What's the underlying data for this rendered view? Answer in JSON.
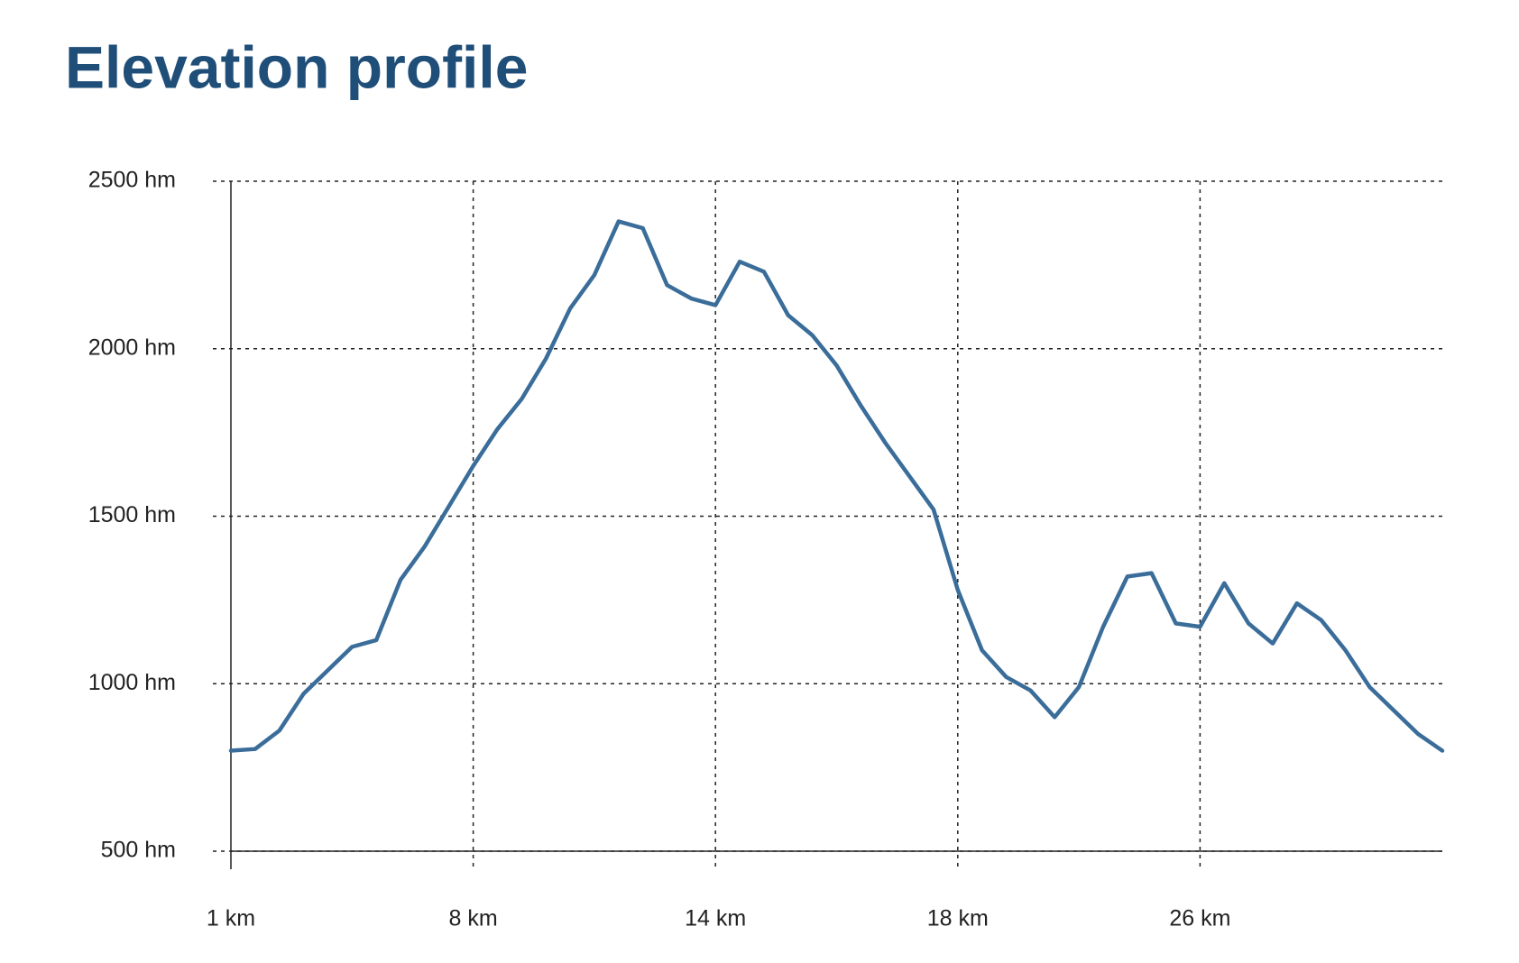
{
  "chart_data": {
    "type": "line",
    "title": "Elevation profile",
    "categories": [
      "1 km",
      null,
      null,
      null,
      null,
      null,
      null,
      null,
      null,
      null,
      "8 km",
      null,
      null,
      null,
      null,
      null,
      null,
      null,
      null,
      null,
      "14 km",
      null,
      null,
      null,
      null,
      null,
      null,
      null,
      null,
      null,
      "18 km",
      null,
      null,
      null,
      null,
      null,
      null,
      null,
      null,
      null,
      "26 km",
      null,
      null,
      null,
      null,
      null,
      null,
      null,
      null,
      null,
      null
    ],
    "series": [
      {
        "name": "Elevation",
        "color": "#3a6d9a",
        "values": [
          800,
          805,
          860,
          970,
          1040,
          1110,
          1130,
          1310,
          1410,
          1530,
          1650,
          1760,
          1850,
          1970,
          2120,
          2220,
          2380,
          2360,
          2190,
          2150,
          2130,
          2260,
          2230,
          2100,
          2040,
          1950,
          1830,
          1720,
          1620,
          1520,
          1280,
          1100,
          1020,
          980,
          900,
          990,
          1170,
          1320,
          1330,
          1180,
          1170,
          1300,
          1180,
          1120,
          1240,
          1190,
          1100,
          990,
          920,
          850,
          800
        ]
      }
    ],
    "ylim": [
      500,
      2500
    ],
    "yticks": [
      {
        "value": 500,
        "label": "500 hm"
      },
      {
        "value": 1000,
        "label": "1000 hm"
      },
      {
        "value": 1500,
        "label": "1500 hm"
      },
      {
        "value": 2000,
        "label": "2000 hm"
      },
      {
        "value": 2500,
        "label": "2500 hm"
      }
    ],
    "grid": true
  }
}
